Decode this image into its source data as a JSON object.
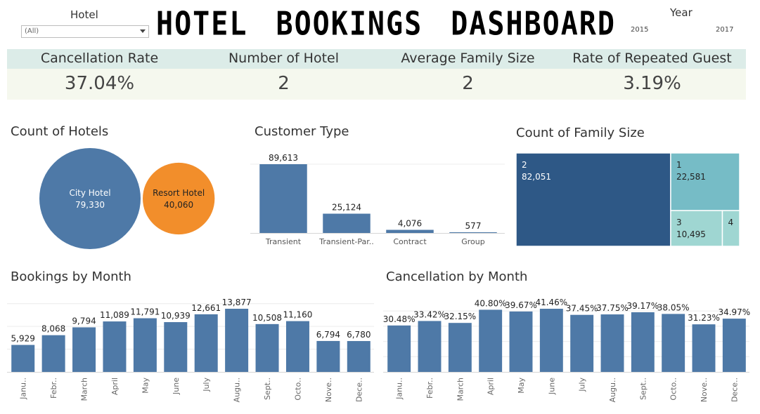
{
  "filters": {
    "hotel_label": "Hotel",
    "hotel_value": "(All)",
    "year_label": "Year",
    "year_min": "2015",
    "year_max": "2017"
  },
  "title": "HOTEL BOOKINGS DASHBOARD",
  "kpis": [
    {
      "label": "Cancellation Rate",
      "value": "37.04%"
    },
    {
      "label": "Number of Hotel",
      "value": "2"
    },
    {
      "label": "Average Family Size",
      "value": "2"
    },
    {
      "label": "Rate of Repeated Guest",
      "value": "3.19%"
    }
  ],
  "colors": {
    "bar": "#4e79a7",
    "city": "#4e79a7",
    "resort": "#f28e2b",
    "tree_dark": "#2e5886",
    "tree_mid": "#76bcc6",
    "tree_light": "#9fd6d2",
    "kpi_header": "#dcece8",
    "kpi_body": "#f5f8ee"
  },
  "chart_data": [
    {
      "type": "bubble",
      "title": "Count of Hotels",
      "categories": [
        "City Hotel",
        "Resort Hotel"
      ],
      "values": [
        79330,
        40060
      ],
      "value_labels": [
        "79,330",
        "40,060"
      ]
    },
    {
      "type": "bar",
      "title": "Customer Type",
      "categories": [
        "Transient",
        "Transient-Par..",
        "Contract",
        "Group"
      ],
      "values": [
        89613,
        25124,
        4076,
        577
      ],
      "value_labels": [
        "89,613",
        "25,124",
        "4,076",
        "577"
      ]
    },
    {
      "type": "treemap",
      "title": "Count of Family Size",
      "categories": [
        "2",
        "1",
        "3",
        "4"
      ],
      "values": [
        82051,
        22581,
        10495,
        3500
      ],
      "value_labels": [
        "82,051",
        "22,581",
        "10,495",
        ""
      ]
    },
    {
      "type": "bar",
      "title": "Bookings by Month",
      "categories": [
        "Janu..",
        "Febr..",
        "March",
        "April",
        "May",
        "June",
        "July",
        "Augu..",
        "Sept..",
        "Octo..",
        "Nove..",
        "Dece.."
      ],
      "values": [
        5929,
        8068,
        9794,
        11089,
        11791,
        10939,
        12661,
        13877,
        10508,
        11160,
        6794,
        6780
      ],
      "value_labels": [
        "5,929",
        "8,068",
        "9,794",
        "11,089",
        "11,791",
        "10,939",
        "12,661",
        "13,877",
        "10,508",
        "11,160",
        "6,794",
        "6,780"
      ]
    },
    {
      "type": "bar",
      "title": "Cancellation by Month",
      "categories": [
        "Janu..",
        "Febr..",
        "March",
        "April",
        "May",
        "June",
        "July",
        "Augu..",
        "Sept..",
        "Octo..",
        "Nove..",
        "Dece.."
      ],
      "values": [
        30.48,
        33.42,
        32.15,
        40.8,
        39.67,
        41.46,
        37.45,
        37.75,
        39.17,
        38.05,
        31.23,
        34.97
      ],
      "value_labels": [
        "30.48%",
        "33.42%",
        "32.15%",
        "40.80%",
        "39.67%",
        "41.46%",
        "37.45%",
        "37.75%",
        "39.17%",
        "38.05%",
        "31.23%",
        "34.97%"
      ]
    }
  ]
}
